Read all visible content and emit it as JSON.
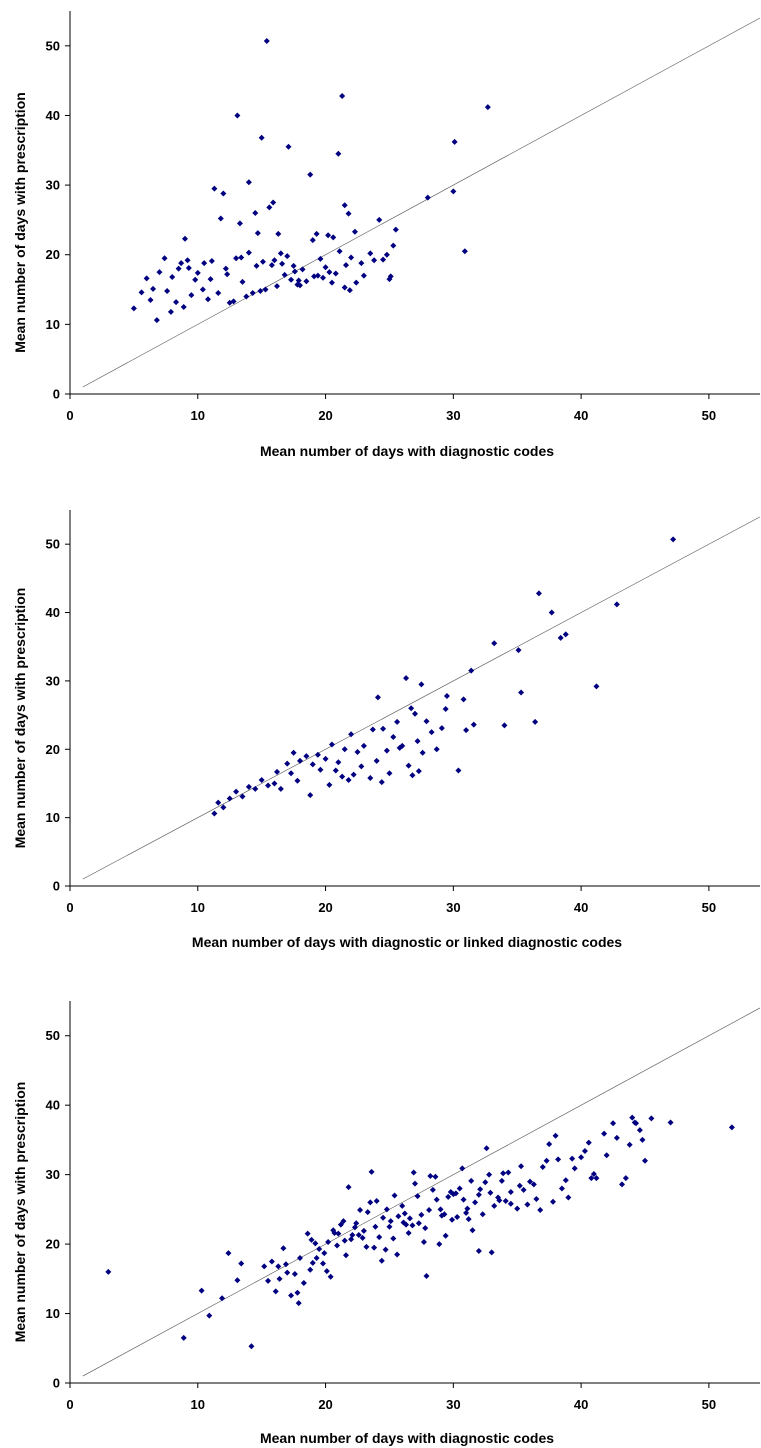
{
  "chart_data": [
    {
      "type": "scatter",
      "title": "",
      "xlabel": "Mean number of days with diagnostic codes",
      "ylabel": "Mean number of days with prescription",
      "xlim": [
        0,
        54
      ],
      "ylim": [
        0,
        55
      ],
      "xticks": [
        "0",
        "10",
        "20",
        "30",
        "40",
        "50"
      ],
      "yticks": [
        "0",
        "10",
        "20",
        "30",
        "40",
        "50"
      ],
      "reference_line": "y = x",
      "grid": false,
      "legend": "none",
      "marker_color": "#000080",
      "series": [
        {
          "x": [
            15.4,
            21.3,
            13.1,
            32.7,
            15.0,
            17.1,
            21.0,
            30.1,
            14.0,
            18.8,
            11.3,
            12.0,
            28.0,
            30.0,
            15.9,
            15.6,
            21.5,
            14.5,
            11.8,
            21.8,
            24.2,
            13.3,
            14.7,
            16.3,
            22.3,
            25.5,
            19.3,
            19.0,
            20.2,
            20.6,
            9.0,
            7.4,
            9.2,
            8.7,
            13.0,
            14.0,
            15.1,
            15.8,
            16.5,
            17.0,
            17.5,
            18.2,
            19.6,
            20.0,
            21.1,
            22.0,
            23.5,
            24.8,
            25.1,
            30.9,
            6.0,
            6.5,
            7.0,
            8.0,
            8.5,
            10.0,
            10.5,
            11.0,
            12.3,
            13.5,
            16.0,
            16.8,
            17.3,
            18.0,
            19.8,
            20.8,
            22.4,
            23.0,
            25.0,
            5.0,
            5.6,
            6.3,
            7.6,
            8.3,
            9.5,
            9.8,
            10.4,
            11.6,
            12.5,
            14.3,
            15.3,
            17.8,
            18.5,
            20.5,
            21.5,
            21.9,
            6.8,
            7.9,
            8.9,
            10.8,
            12.8,
            13.8,
            14.9,
            16.2,
            17.6,
            19.1,
            20.3,
            22.8,
            24.5,
            9.3,
            11.1,
            12.2,
            13.4,
            14.6,
            16.6,
            17.9,
            19.4,
            21.6,
            23.8,
            25.3
          ],
          "y": [
            50.7,
            42.8,
            40.0,
            41.2,
            36.8,
            35.5,
            34.5,
            36.2,
            30.4,
            31.5,
            29.5,
            28.8,
            28.2,
            29.1,
            27.5,
            26.8,
            27.1,
            26.0,
            25.2,
            25.9,
            25.0,
            24.5,
            23.1,
            23.0,
            23.3,
            23.6,
            23.0,
            22.1,
            22.8,
            22.5,
            22.3,
            19.5,
            19.2,
            18.8,
            19.5,
            20.3,
            19.0,
            18.5,
            20.2,
            19.8,
            18.4,
            17.9,
            19.4,
            18.2,
            20.5,
            19.6,
            20.2,
            20.0,
            16.9,
            20.5,
            16.6,
            15.1,
            17.5,
            16.8,
            18.0,
            17.4,
            18.8,
            16.5,
            17.2,
            16.1,
            19.2,
            17.1,
            16.4,
            15.6,
            16.7,
            17.3,
            16.0,
            17.0,
            16.5,
            12.3,
            14.6,
            13.5,
            14.8,
            13.2,
            14.2,
            16.4,
            15.0,
            14.5,
            13.1,
            14.5,
            15.0,
            15.7,
            16.2,
            16.0,
            15.3,
            14.9,
            10.6,
            11.8,
            12.5,
            13.6,
            13.3,
            14.0,
            14.8,
            15.5,
            17.6,
            16.9,
            17.5,
            18.8,
            19.3,
            18.1,
            19.1,
            18.0,
            19.6,
            18.4,
            18.7,
            16.3,
            17.0,
            18.5,
            19.2,
            21.3
          ]
        }
      ]
    },
    {
      "type": "scatter",
      "title": "",
      "xlabel": "Mean number of days with diagnostic or linked diagnostic codes",
      "ylabel": "Mean number of days with prescription",
      "xlim": [
        0,
        54
      ],
      "ylim": [
        0,
        55
      ],
      "xticks": [
        "0",
        "10",
        "20",
        "30",
        "40",
        "50"
      ],
      "yticks": [
        "0",
        "10",
        "20",
        "30",
        "40",
        "50"
      ],
      "reference_line": "y = x",
      "grid": false,
      "legend": "none",
      "marker_color": "#000080",
      "series": [
        {
          "x": [
            47.2,
            36.7,
            42.8,
            37.7,
            38.8,
            38.4,
            33.2,
            35.1,
            41.2,
            31.4,
            26.3,
            35.3,
            27.5,
            36.4,
            24.1,
            34.0,
            29.5,
            30.8,
            29.4,
            26.7,
            27.0,
            25.6,
            31.0,
            27.9,
            29.1,
            28.3,
            31.6,
            22.0,
            23.7,
            24.5,
            25.3,
            26.0,
            27.2,
            30.4,
            20.5,
            21.5,
            22.5,
            23.0,
            24.8,
            25.8,
            27.6,
            28.7,
            17.5,
            18.5,
            19.4,
            20.0,
            21.0,
            22.8,
            24.0,
            26.5,
            15.0,
            16.2,
            17.0,
            18.0,
            19.0,
            20.8,
            22.2,
            23.5,
            25.0,
            26.8,
            12.0,
            13.0,
            14.0,
            15.5,
            16.5,
            17.8,
            18.8,
            20.3,
            21.8,
            11.3,
            11.6,
            12.5,
            13.5,
            14.5,
            16.0,
            17.3,
            19.6,
            21.3,
            24.4,
            27.3
          ],
          "y": [
            50.7,
            42.8,
            41.2,
            40.0,
            36.8,
            36.3,
            35.5,
            34.5,
            29.2,
            31.5,
            30.4,
            28.3,
            29.5,
            24.0,
            27.6,
            23.5,
            27.8,
            27.3,
            25.9,
            26.0,
            25.2,
            24.0,
            22.8,
            24.1,
            23.1,
            22.5,
            23.6,
            22.2,
            22.9,
            23.0,
            21.8,
            20.5,
            21.2,
            16.9,
            20.7,
            20.0,
            19.6,
            20.5,
            19.8,
            20.2,
            19.5,
            20.0,
            19.5,
            19.0,
            19.2,
            18.6,
            18.1,
            17.5,
            18.3,
            17.6,
            15.5,
            16.7,
            17.9,
            18.3,
            17.8,
            16.9,
            16.3,
            15.8,
            16.5,
            16.2,
            11.5,
            13.8,
            14.5,
            14.7,
            14.2,
            15.4,
            13.3,
            14.8,
            15.5,
            10.6,
            12.2,
            12.8,
            13.1,
            14.2,
            15.0,
            16.5,
            17.0,
            16.0,
            15.2,
            16.8
          ]
        }
      ]
    },
    {
      "type": "scatter",
      "title": "",
      "xlabel": "Mean number of days with diagnostic codes",
      "ylabel": "Mean number of days with prescription",
      "xlim": [
        0,
        54
      ],
      "ylim": [
        0,
        55
      ],
      "xticks": [
        "0",
        "10",
        "20",
        "30",
        "40",
        "50"
      ],
      "yticks": [
        "0",
        "10",
        "20",
        "30",
        "40",
        "50"
      ],
      "reference_line": "y = x",
      "grid": false,
      "legend": "none",
      "marker_color": "#000080",
      "series": [
        {
          "x": [
            3.0,
            8.9,
            10.3,
            10.9,
            11.9,
            12.4,
            14.2,
            13.1,
            13.4,
            15.2,
            15.8,
            16.1,
            16.7,
            16.9,
            17.6,
            17.9,
            18.3,
            18.6,
            19.0,
            19.2,
            19.5,
            19.9,
            20.2,
            20.6,
            20.9,
            21.2,
            21.5,
            21.8,
            22.1,
            22.4,
            22.7,
            23.0,
            23.3,
            23.6,
            23.9,
            24.2,
            24.5,
            24.8,
            25.1,
            25.4,
            25.7,
            26.0,
            26.3,
            26.6,
            26.9,
            27.2,
            27.5,
            27.8,
            28.1,
            28.4,
            28.7,
            29.0,
            29.3,
            29.6,
            29.9,
            30.2,
            30.5,
            30.8,
            31.1,
            31.4,
            31.7,
            32.0,
            32.3,
            32.6,
            32.9,
            33.2,
            33.5,
            33.8,
            34.1,
            34.5,
            35.0,
            35.5,
            36.0,
            36.5,
            37.0,
            37.5,
            38.0,
            38.5,
            39.0,
            39.5,
            40.0,
            40.6,
            41.2,
            41.8,
            42.5,
            43.2,
            44.0,
            44.8,
            45.5,
            47.0,
            51.8,
            17.0,
            18.0,
            19.8,
            21.0,
            22.0,
            23.2,
            24.0,
            25.0,
            26.5,
            27.9,
            28.9,
            30.0,
            31.0,
            32.0,
            33.0,
            34.5,
            35.2,
            36.8,
            38.8,
            40.3,
            42.0,
            43.8,
            44.3,
            45.0,
            16.4,
            17.3,
            18.8,
            20.4,
            21.6,
            22.9,
            24.4,
            25.6,
            26.8,
            27.7,
            29.1,
            30.3,
            31.5,
            32.8,
            33.9,
            35.8,
            37.3,
            39.3,
            41.0,
            43.5,
            19.3,
            20.7,
            22.3,
            23.8,
            25.3,
            26.2,
            27.3,
            28.6,
            29.8,
            31.2,
            32.5,
            34.3,
            36.3,
            38.2,
            40.8,
            42.8,
            44.6,
            15.5,
            16.3,
            17.8,
            18.9,
            20.1,
            21.4,
            22.6,
            23.5,
            24.7,
            26.1,
            27.0,
            28.2,
            29.4,
            30.7,
            32.1,
            33.6,
            35.3,
            37.8,
            44.2
          ],
          "y": [
            16.0,
            6.5,
            13.3,
            9.7,
            12.2,
            18.7,
            5.3,
            14.8,
            17.2,
            16.8,
            17.5,
            13.2,
            19.4,
            17.1,
            15.7,
            11.5,
            14.4,
            21.5,
            17.3,
            20.1,
            19.3,
            18.7,
            20.3,
            22.0,
            19.8,
            22.8,
            20.5,
            28.2,
            21.3,
            23.0,
            24.9,
            21.9,
            24.6,
            30.4,
            22.5,
            21.0,
            23.8,
            25.0,
            23.3,
            27.0,
            24.0,
            25.5,
            22.8,
            23.7,
            30.3,
            26.9,
            24.2,
            22.3,
            24.9,
            27.8,
            26.4,
            25.0,
            24.3,
            26.8,
            23.5,
            27.3,
            28.0,
            26.4,
            25.1,
            29.1,
            26.0,
            27.1,
            24.3,
            33.8,
            27.4,
            25.5,
            26.7,
            29.1,
            26.2,
            27.5,
            25.1,
            27.8,
            29.0,
            26.5,
            31.1,
            34.4,
            35.6,
            28.0,
            26.7,
            30.9,
            32.5,
            34.6,
            29.5,
            35.9,
            37.4,
            28.6,
            38.2,
            35.0,
            38.1,
            37.5,
            36.8,
            15.9,
            18.0,
            17.2,
            21.5,
            20.7,
            19.6,
            26.2,
            22.5,
            21.6,
            15.4,
            20.0,
            27.2,
            24.5,
            19.0,
            18.8,
            25.8,
            28.4,
            24.9,
            29.2,
            33.4,
            32.8,
            34.3,
            37.4,
            32.0,
            15.0,
            12.6,
            16.3,
            15.3,
            18.4,
            20.9,
            17.6,
            18.5,
            22.7,
            20.3,
            24.1,
            23.9,
            22.0,
            30.0,
            30.2,
            25.7,
            32.0,
            32.3,
            30.1,
            29.5,
            18.0,
            21.6,
            22.4,
            19.5,
            20.8,
            24.4,
            23.0,
            29.7,
            27.5,
            23.6,
            28.9,
            30.3,
            28.6,
            32.2,
            29.5,
            35.3,
            36.4,
            14.7,
            16.8,
            13.0,
            20.6,
            16.1,
            23.3,
            21.3,
            26.0,
            19.2,
            23.1,
            28.7,
            29.8,
            21.2,
            30.9,
            27.9,
            26.3,
            31.2,
            26.1,
            37.5
          ]
        }
      ]
    }
  ]
}
